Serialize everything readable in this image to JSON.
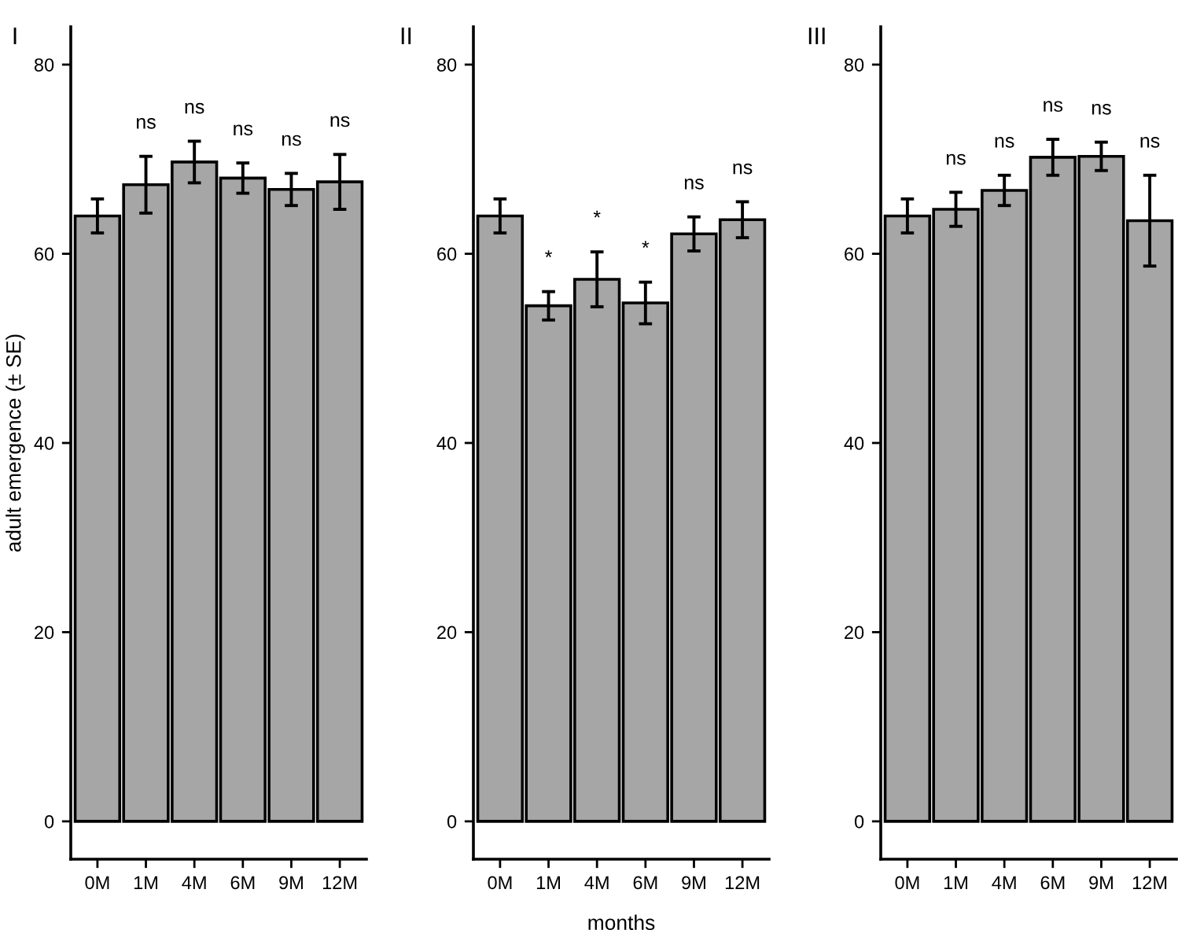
{
  "chart_data": [
    {
      "type": "bar",
      "title": "I",
      "ylabel": "adult emergence (± SE)",
      "categories": [
        "0M",
        "1M",
        "4M",
        "6M",
        "9M",
        "12M"
      ],
      "values": [
        64.0,
        67.3,
        69.7,
        68.0,
        66.8,
        67.6
      ],
      "errors": [
        1.8,
        3.0,
        2.2,
        1.6,
        1.7,
        2.9
      ],
      "color": "#a6a6a6",
      "ylim": [
        -4,
        84
      ],
      "yticks": [
        0,
        20,
        40,
        60,
        80
      ],
      "grid": false,
      "annotations": [
        "ns",
        "ns",
        "ns",
        "ns",
        "ns"
      ]
    },
    {
      "type": "bar",
      "title": "II",
      "xlabel": "months",
      "categories": [
        "0M",
        "1M",
        "4M",
        "6M",
        "9M",
        "12M"
      ],
      "values": [
        64.0,
        54.5,
        57.3,
        54.8,
        62.1,
        63.6
      ],
      "errors": [
        1.8,
        1.5,
        2.9,
        2.2,
        1.8,
        1.9
      ],
      "color": "#a6a6a6",
      "ylim": [
        -4,
        84
      ],
      "yticks": [
        0,
        20,
        40,
        60,
        80
      ],
      "grid": false,
      "annotations": [
        "*",
        "*",
        "*",
        "ns",
        "ns"
      ]
    },
    {
      "type": "bar",
      "title": "III",
      "categories": [
        "0M",
        "1M",
        "4M",
        "6M",
        "9M",
        "12M"
      ],
      "values": [
        64.0,
        64.7,
        66.7,
        70.2,
        70.3,
        63.5
      ],
      "errors": [
        1.8,
        1.8,
        1.6,
        1.9,
        1.5,
        4.8
      ],
      "color": "#a6a6a6",
      "ylim": [
        -4,
        84
      ],
      "yticks": [
        0,
        20,
        40,
        60,
        80
      ],
      "grid": false,
      "annotations": [
        "ns",
        "ns",
        "ns",
        "ns",
        "ns"
      ]
    }
  ]
}
